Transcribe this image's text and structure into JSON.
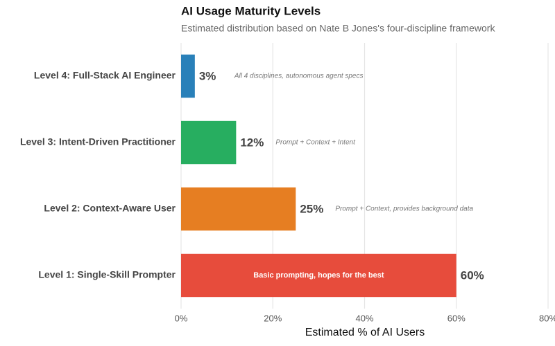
{
  "chart_data": {
    "type": "bar",
    "orientation": "horizontal",
    "title": "AI Usage Maturity Levels",
    "subtitle": "Estimated distribution based on Nate B Jones's four-discipline framework",
    "x_label": "Estimated % of AI Users",
    "categories": [
      "Level 1: Single-Skill Prompter",
      "Level 2: Context-Aware User",
      "Level 3: Intent-Driven Practitioner",
      "Level 4: Full-Stack AI Engineer"
    ],
    "values": [
      60,
      25,
      12,
      3
    ],
    "value_labels": [
      "60%",
      "25%",
      "12%",
      "3%"
    ],
    "annotations": [
      "Basic prompting, hopes for the best",
      "Prompt + Context, provides background data",
      "Prompt + Context + Intent",
      "All 4 disciplines, autonomous agent specs"
    ],
    "colors": [
      "#e74c3c",
      "#e67e22",
      "#27ae60",
      "#2980b9"
    ],
    "xlim": [
      0,
      80
    ],
    "xticks": [
      {
        "value": 0,
        "label": "0%"
      },
      {
        "value": 20,
        "label": "20%"
      },
      {
        "value": 40,
        "label": "40%"
      },
      {
        "value": 60,
        "label": "60%"
      },
      {
        "value": 80,
        "label": "80%"
      }
    ],
    "grid": true
  }
}
